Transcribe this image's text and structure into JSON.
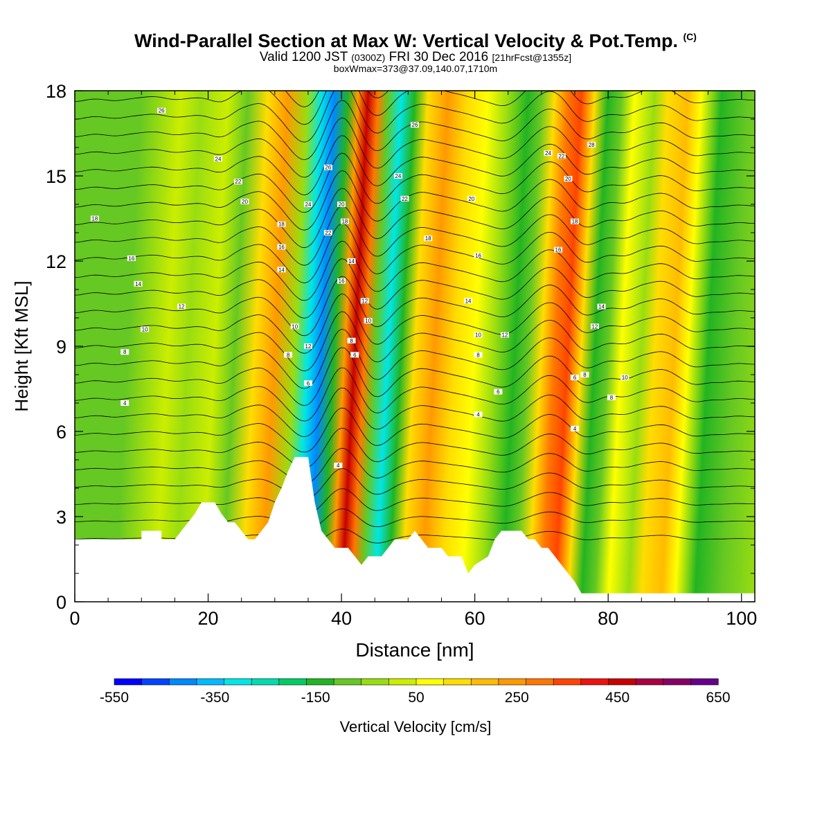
{
  "title": "Wind-Parallel Section at Max W: Vertical Velocity & Pot.Temp.",
  "title_mark": "(C)",
  "subtitle_main": "Valid 1200 JST",
  "subtitle_utc": "(0300Z)",
  "subtitle_date": "FRI 30 Dec 2016",
  "subtitle_fcst": "[21hrFcst@1355z]",
  "subtitle_box": "boxWmax=373@37.09,140.07,1710m",
  "colorbar_label": "Vertical Velocity [cm/s]",
  "chart_data": {
    "type": "heatmap",
    "xlabel": "Distance [nm]",
    "ylabel": "Height [Kft MSL]",
    "xlim": [
      0,
      102
    ],
    "ylim": [
      0,
      18
    ],
    "x_ticks": [
      "0",
      "20",
      "40",
      "60",
      "80",
      "100"
    ],
    "x_tick_values": [
      0,
      20,
      40,
      60,
      80,
      100
    ],
    "y_ticks": [
      "0",
      "3",
      "6",
      "9",
      "12",
      "15",
      "18"
    ],
    "y_tick_values": [
      0,
      3,
      6,
      9,
      12,
      15,
      18
    ],
    "colorbar": {
      "label": "Vertical Velocity [cm/s]",
      "tick_labels": [
        "-550",
        "-350",
        "-150",
        "50",
        "250",
        "450",
        "650"
      ],
      "tick_values": [
        -550,
        -350,
        -150,
        50,
        250,
        450,
        650
      ],
      "colors": [
        "#0000ff",
        "#0044ff",
        "#0088ff",
        "#00bbff",
        "#00e6e6",
        "#00dcb0",
        "#00cc66",
        "#22b422",
        "#66c822",
        "#99dd11",
        "#ccee00",
        "#ffff00",
        "#ffdd00",
        "#ffbb00",
        "#ff9900",
        "#ff7700",
        "#ff4400",
        "#ee1111",
        "#c80000",
        "#aa0044",
        "#880066",
        "#660088"
      ]
    },
    "vertical_velocity_bands": [
      {
        "x": 0,
        "w": -80
      },
      {
        "x": 6,
        "w": -60
      },
      {
        "x": 12,
        "w": 40
      },
      {
        "x": 15,
        "w": -40
      },
      {
        "x": 19,
        "w": 20
      },
      {
        "x": 22,
        "w": -110
      },
      {
        "x": 25,
        "w": 150
      },
      {
        "x": 28,
        "w": 260
      },
      {
        "x": 31,
        "w": -20
      },
      {
        "x": 33,
        "w": -300
      },
      {
        "x": 35,
        "w": -420
      },
      {
        "x": 37,
        "w": -150
      },
      {
        "x": 38.5,
        "w": 250
      },
      {
        "x": 40,
        "w": 470
      },
      {
        "x": 41.5,
        "w": 300
      },
      {
        "x": 43,
        "w": -80
      },
      {
        "x": 45,
        "w": -330
      },
      {
        "x": 47,
        "w": -150
      },
      {
        "x": 49,
        "w": 120
      },
      {
        "x": 52,
        "w": 230
      },
      {
        "x": 55,
        "w": 140
      },
      {
        "x": 58,
        "w": 60
      },
      {
        "x": 61,
        "w": -40
      },
      {
        "x": 64,
        "w": -150
      },
      {
        "x": 66,
        "w": -60
      },
      {
        "x": 68,
        "w": 120
      },
      {
        "x": 70,
        "w": 300
      },
      {
        "x": 72,
        "w": 350
      },
      {
        "x": 74,
        "w": 150
      },
      {
        "x": 76,
        "w": -150
      },
      {
        "x": 78,
        "w": -60
      },
      {
        "x": 80,
        "w": 60
      },
      {
        "x": 83,
        "w": -40
      },
      {
        "x": 85,
        "w": 140
      },
      {
        "x": 88,
        "w": 200
      },
      {
        "x": 90,
        "w": 60
      },
      {
        "x": 93,
        "w": -120
      },
      {
        "x": 97,
        "w": -60
      },
      {
        "x": 102,
        "w": -50
      }
    ],
    "terrain_height_kft": [
      [
        0,
        2.2
      ],
      [
        10,
        2.2
      ],
      [
        10,
        2.5
      ],
      [
        13,
        2.5
      ],
      [
        13,
        2.2
      ],
      [
        15,
        2.2
      ],
      [
        16,
        2.5
      ],
      [
        17,
        2.8
      ],
      [
        18,
        3.1
      ],
      [
        19,
        3.5
      ],
      [
        21,
        3.5
      ],
      [
        22,
        3.1
      ],
      [
        23,
        2.8
      ],
      [
        24,
        2.8
      ],
      [
        25,
        2.5
      ],
      [
        26,
        2.2
      ],
      [
        27,
        2.2
      ],
      [
        28,
        2.5
      ],
      [
        29,
        2.8
      ],
      [
        30,
        3.5
      ],
      [
        31,
        4.0
      ],
      [
        32,
        4.6
      ],
      [
        33,
        5.1
      ],
      [
        35,
        5.1
      ],
      [
        36,
        3.5
      ],
      [
        37,
        2.5
      ],
      [
        38,
        2.2
      ],
      [
        39,
        1.9
      ],
      [
        41,
        1.9
      ],
      [
        42,
        1.6
      ],
      [
        43,
        1.3
      ],
      [
        44,
        1.6
      ],
      [
        46,
        1.6
      ],
      [
        47,
        1.9
      ],
      [
        48,
        2.2
      ],
      [
        50,
        2.2
      ],
      [
        51,
        2.5
      ],
      [
        52,
        2.2
      ],
      [
        53,
        1.9
      ],
      [
        55,
        1.9
      ],
      [
        56,
        1.6
      ],
      [
        58,
        1.6
      ],
      [
        59,
        1.0
      ],
      [
        60,
        1.3
      ],
      [
        62,
        1.6
      ],
      [
        63,
        2.2
      ],
      [
        64,
        2.5
      ],
      [
        67,
        2.5
      ],
      [
        68,
        2.2
      ],
      [
        69,
        2.2
      ],
      [
        70,
        1.9
      ],
      [
        71,
        1.9
      ],
      [
        72,
        1.6
      ],
      [
        73,
        1.3
      ],
      [
        74,
        1.0
      ],
      [
        75,
        0.7
      ],
      [
        76,
        0.3
      ],
      [
        102,
        0.3
      ]
    ],
    "theta_contour_labels": [
      {
        "x": 7.5,
        "y": 7.0,
        "t": "4"
      },
      {
        "x": 7.5,
        "y": 8.8,
        "t": "8"
      },
      {
        "x": 10.5,
        "y": 9.6,
        "t": "10"
      },
      {
        "x": 9.5,
        "y": 11.2,
        "t": "14"
      },
      {
        "x": 8.5,
        "y": 12.1,
        "t": "16"
      },
      {
        "x": 3.0,
        "y": 13.5,
        "t": "18"
      },
      {
        "x": 16.0,
        "y": 10.4,
        "t": "12"
      },
      {
        "x": 13.0,
        "y": 17.3,
        "t": "26"
      },
      {
        "x": 21.5,
        "y": 15.6,
        "t": "24"
      },
      {
        "x": 24.5,
        "y": 14.8,
        "t": "22"
      },
      {
        "x": 25.5,
        "y": 14.1,
        "t": "20"
      },
      {
        "x": 31.0,
        "y": 13.3,
        "t": "18"
      },
      {
        "x": 31.0,
        "y": 12.5,
        "t": "16"
      },
      {
        "x": 31.0,
        "y": 11.7,
        "t": "14"
      },
      {
        "x": 33.0,
        "y": 9.7,
        "t": "10"
      },
      {
        "x": 32.0,
        "y": 8.7,
        "t": "8"
      },
      {
        "x": 35.0,
        "y": 9.0,
        "t": "12"
      },
      {
        "x": 35.0,
        "y": 7.7,
        "t": "6"
      },
      {
        "x": 35.0,
        "y": 14.0,
        "t": "24"
      },
      {
        "x": 38.0,
        "y": 15.3,
        "t": "26"
      },
      {
        "x": 38.0,
        "y": 13.0,
        "t": "22"
      },
      {
        "x": 40.0,
        "y": 14.0,
        "t": "20"
      },
      {
        "x": 40.5,
        "y": 13.4,
        "t": "18"
      },
      {
        "x": 41.5,
        "y": 12.0,
        "t": "14"
      },
      {
        "x": 40.0,
        "y": 11.3,
        "t": "16"
      },
      {
        "x": 43.5,
        "y": 10.6,
        "t": "12"
      },
      {
        "x": 44.0,
        "y": 9.9,
        "t": "10"
      },
      {
        "x": 41.5,
        "y": 9.2,
        "t": "8"
      },
      {
        "x": 42.0,
        "y": 8.7,
        "t": "6"
      },
      {
        "x": 39.5,
        "y": 4.8,
        "t": "4"
      },
      {
        "x": 51.0,
        "y": 16.8,
        "t": "26"
      },
      {
        "x": 48.5,
        "y": 15.0,
        "t": "24"
      },
      {
        "x": 49.5,
        "y": 14.2,
        "t": "22"
      },
      {
        "x": 53.0,
        "y": 12.8,
        "t": "18"
      },
      {
        "x": 59.0,
        "y": 10.6,
        "t": "14"
      },
      {
        "x": 59.5,
        "y": 14.2,
        "t": "20"
      },
      {
        "x": 60.5,
        "y": 12.2,
        "t": "16"
      },
      {
        "x": 60.5,
        "y": 9.4,
        "t": "10"
      },
      {
        "x": 60.5,
        "y": 8.7,
        "t": "8"
      },
      {
        "x": 60.5,
        "y": 6.6,
        "t": "4"
      },
      {
        "x": 63.5,
        "y": 7.4,
        "t": "6"
      },
      {
        "x": 64.5,
        "y": 9.4,
        "t": "12"
      },
      {
        "x": 71.0,
        "y": 15.8,
        "t": "24"
      },
      {
        "x": 73.0,
        "y": 15.7,
        "t": "22"
      },
      {
        "x": 74.0,
        "y": 14.9,
        "t": "20"
      },
      {
        "x": 75.0,
        "y": 13.4,
        "t": "18"
      },
      {
        "x": 72.5,
        "y": 12.4,
        "t": "16"
      },
      {
        "x": 76.5,
        "y": 8.0,
        "t": "8"
      },
      {
        "x": 75.0,
        "y": 7.9,
        "t": "6"
      },
      {
        "x": 75.0,
        "y": 6.1,
        "t": "4"
      },
      {
        "x": 77.5,
        "y": 16.1,
        "t": "28"
      },
      {
        "x": 79.0,
        "y": 10.4,
        "t": "14"
      },
      {
        "x": 78.0,
        "y": 9.7,
        "t": "12"
      },
      {
        "x": 82.5,
        "y": 7.9,
        "t": "10"
      },
      {
        "x": 80.5,
        "y": 7.2,
        "t": "8"
      }
    ]
  }
}
